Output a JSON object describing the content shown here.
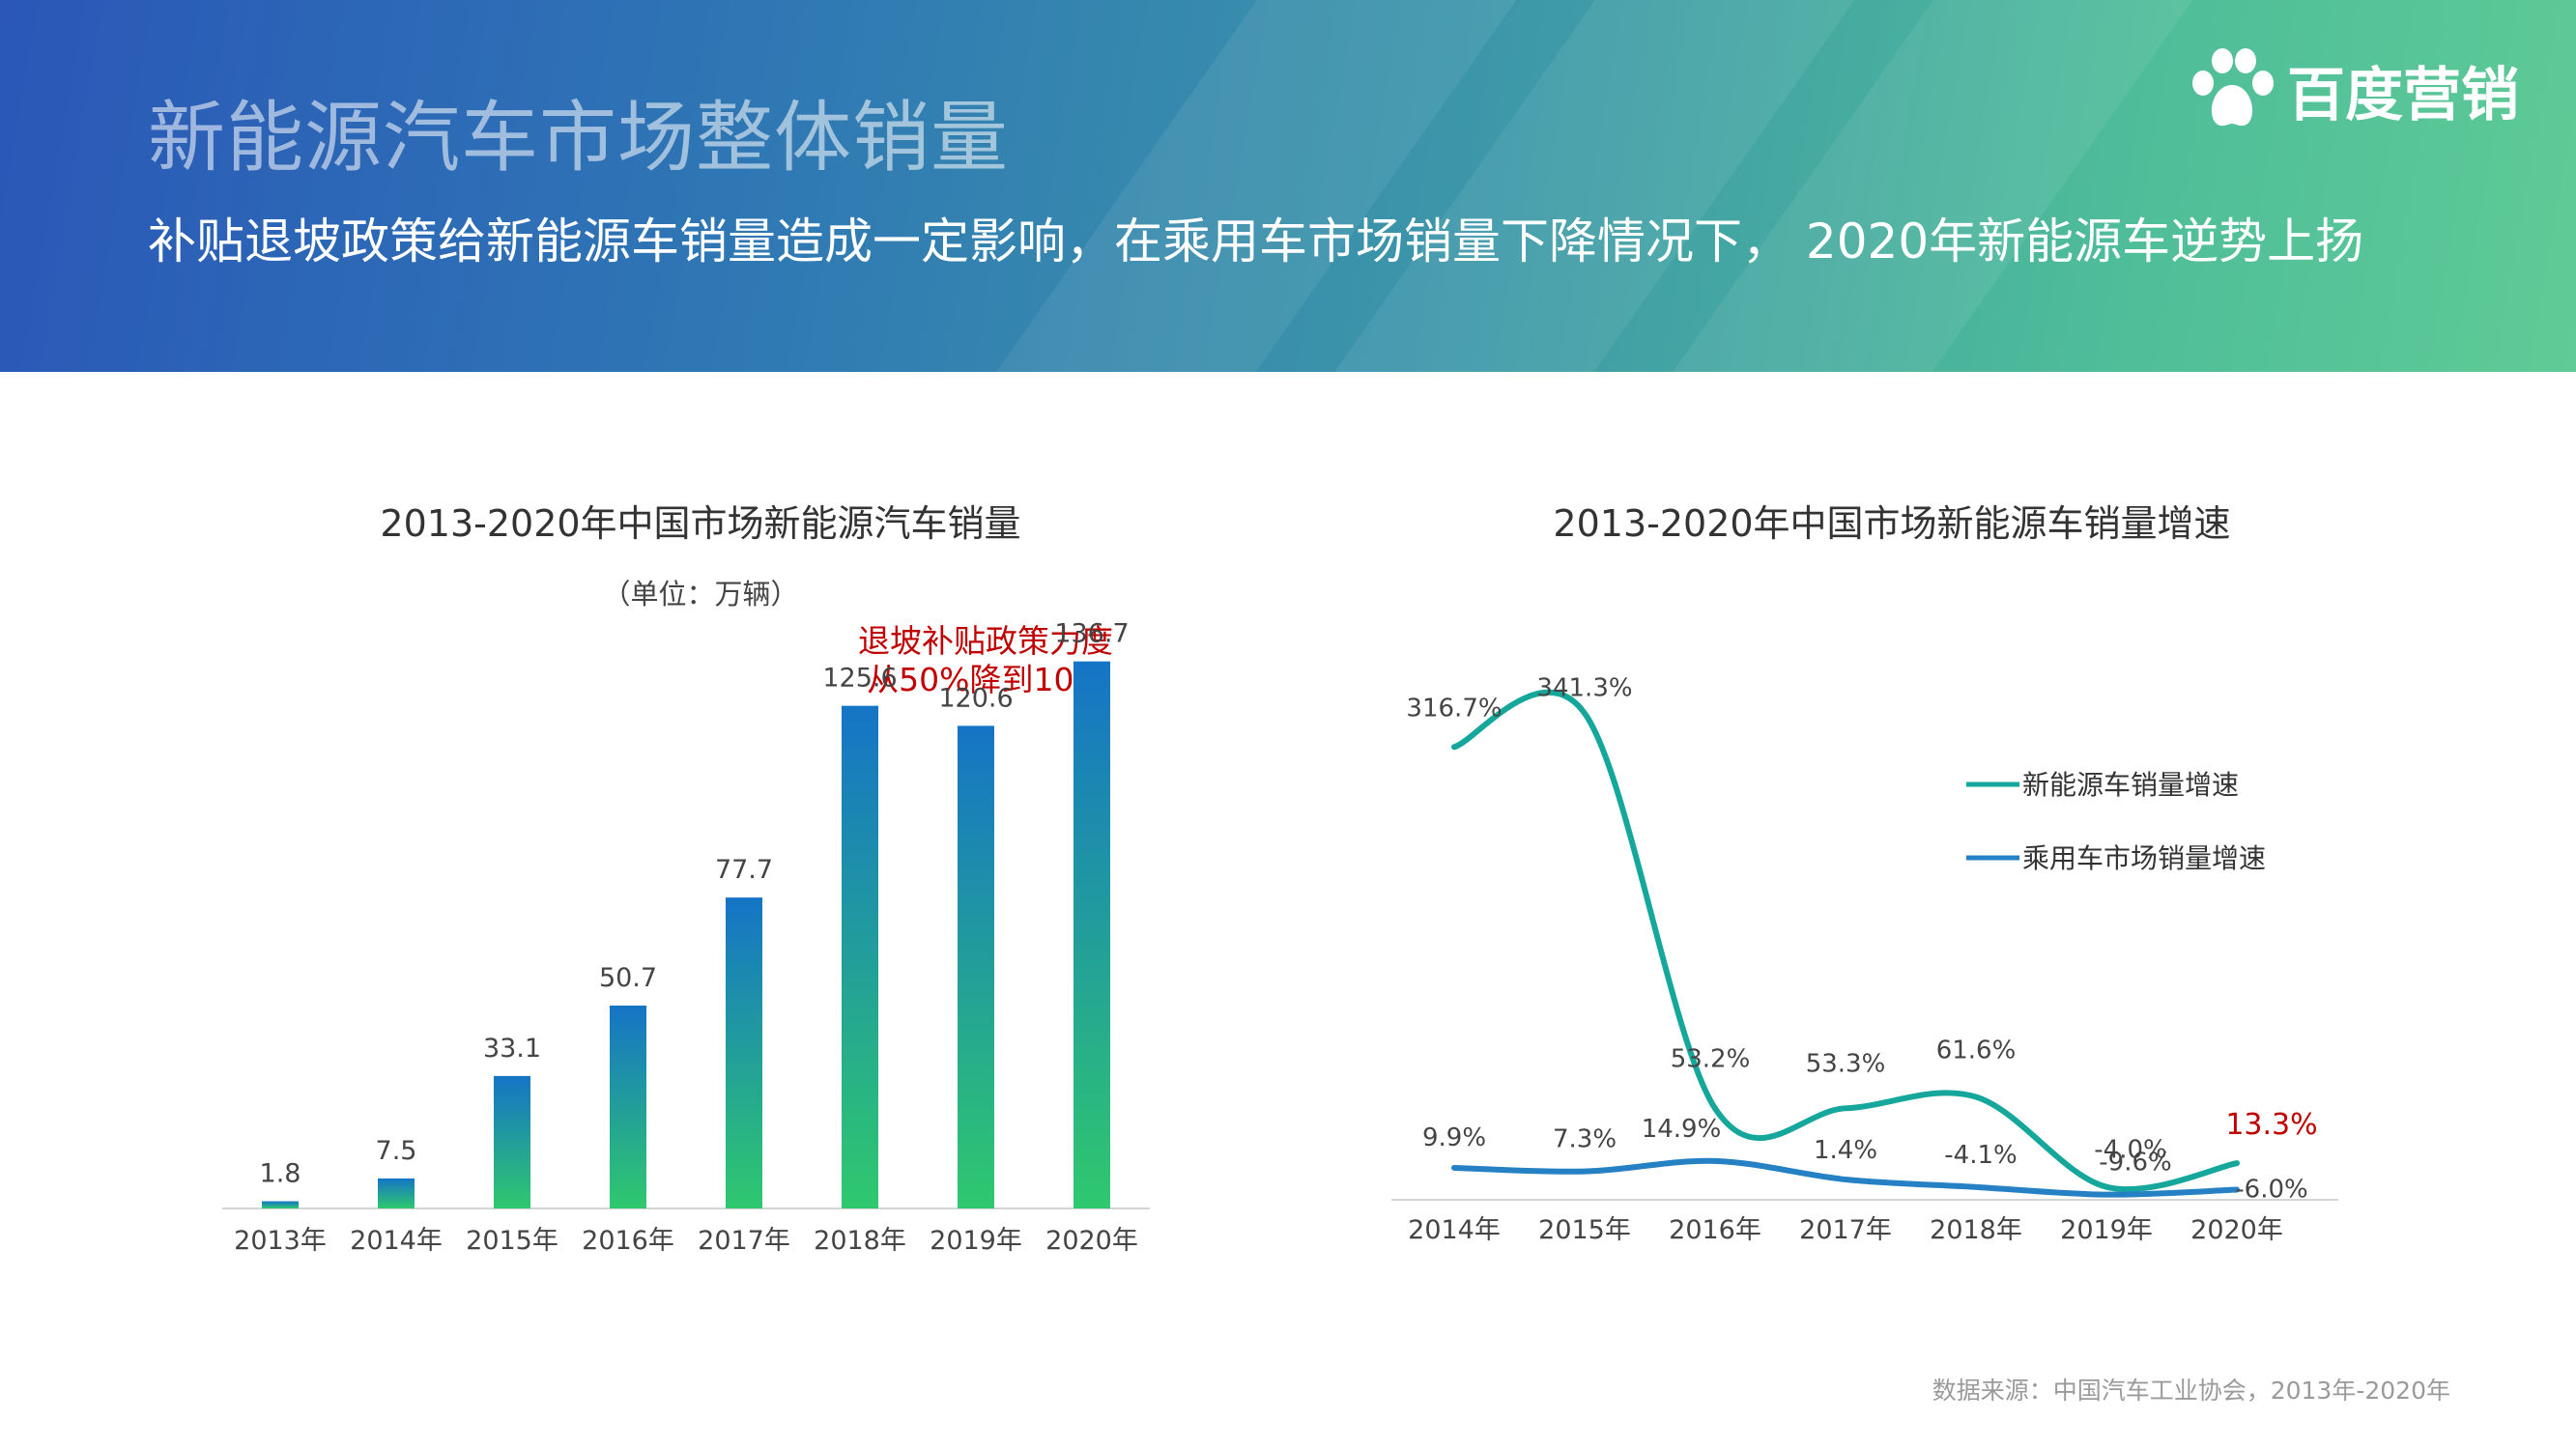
{
  "header": {
    "title": "新能源汽车市场整体销量",
    "subtitle": "补贴退坡政策给新能源车销量造成一定影响，在乘用车市场销量下降情况下， 2020年新能源车逆势上扬",
    "logo_text": "百度营销"
  },
  "source": "数据来源：中国汽车工业协会，2013年-2020年",
  "colors": {
    "bar_top": "#1574c6",
    "bar_bottom": "#2fc86e",
    "nev_line": "#15a79b",
    "passenger_line": "#2580c4",
    "highlight_red": "#c00000"
  },
  "chart_data": [
    {
      "type": "bar",
      "title": "2013-2020年中国市场新能源汽车销量",
      "subtitle": "（单位：万辆）",
      "categories": [
        "2013年",
        "2014年",
        "2015年",
        "2016年",
        "2017年",
        "2018年",
        "2019年",
        "2020年"
      ],
      "values": [
        1.8,
        7.5,
        33.1,
        50.7,
        77.7,
        125.6,
        120.6,
        136.7
      ],
      "ylim": [
        0,
        140
      ],
      "grid": false,
      "annotation": [
        "退坡补贴政策力度",
        "从50%降到10%"
      ]
    },
    {
      "type": "line",
      "title": "2013-2020年中国市场新能源车销量增速",
      "categories": [
        "2014年",
        "2015年",
        "2016年",
        "2017年",
        "2018年",
        "2019年",
        "2020年"
      ],
      "series": [
        {
          "name": "新能源车销量增速",
          "values": [
            316.7,
            341.3,
            53.2,
            53.3,
            61.6,
            -4.0,
            13.3
          ],
          "labels": [
            "316.7%",
            "341.3%",
            "53.2%",
            "53.3%",
            "61.6%",
            "-4.0%",
            "13.3%"
          ]
        },
        {
          "name": "乘用车市场销量增速",
          "values": [
            9.9,
            7.3,
            14.9,
            1.4,
            -4.1,
            -9.6,
            -6.0
          ],
          "labels": [
            "9.9%",
            "7.3%",
            "14.9%",
            "1.4%",
            "-4.1%",
            "-9.6%",
            "-6.0%"
          ]
        }
      ],
      "ylim": [
        -20,
        360
      ],
      "grid": false,
      "legend": "right"
    }
  ]
}
